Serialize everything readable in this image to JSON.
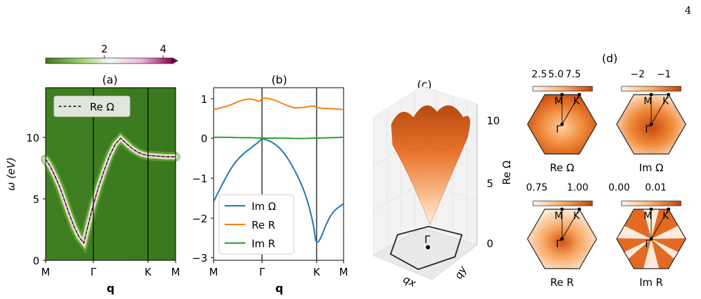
{
  "page_number": "4",
  "colors": {
    "green_dark": "#3b7a1f",
    "green_mid": "#6fae3a",
    "white": "#f7f7f7",
    "pink": "#c51b7d",
    "blue": "#1f77b4",
    "orange": "#ff7f0e",
    "green_line": "#2ca02c",
    "orange_map": "#e0621a"
  },
  "chart_data": [
    {
      "panel": "(a)",
      "type": "heatmap",
      "title": "(a)",
      "xlabel": "q",
      "ylabel": "ω (eV)",
      "x_ticks": [
        "M",
        "Γ",
        "K",
        "M"
      ],
      "y_ticks": [
        "0",
        "5",
        "10"
      ],
      "ylim": [
        0,
        14
      ],
      "colorbar_ticks": [
        "2",
        "4"
      ],
      "colorbar_range": [
        0,
        4.6
      ],
      "legend": [
        "Re Ω"
      ],
      "series": [
        {
          "name": "Re Ω",
          "x": [
            0,
            0.1,
            0.2,
            0.3,
            0.4,
            0.5,
            0.6,
            0.7,
            0.8,
            0.9,
            1.0,
            1.1,
            1.2,
            1.3,
            1.4,
            1.5,
            1.6,
            1.7,
            1.8,
            1.9,
            2.0,
            2.1,
            2.2,
            2.3
          ],
          "y": [
            8.2,
            7.6,
            6.8,
            5.9,
            4.8,
            3.7,
            2.7,
            1.9,
            1.4,
            3.0,
            4.5,
            6.0,
            7.3,
            8.5,
            9.4,
            9.9,
            9.5,
            9.1,
            8.8,
            8.6,
            8.5,
            8.45,
            8.4,
            8.4
          ]
        }
      ]
    },
    {
      "panel": "(b)",
      "type": "line",
      "title": "(b)",
      "xlabel": "q",
      "x_ticks": [
        "M",
        "Γ",
        "K",
        "M"
      ],
      "y_ticks": [
        "−3",
        "−2",
        "−1",
        "0",
        "1"
      ],
      "ylim": [
        -3,
        1.25
      ],
      "legend_position": "bottom-left",
      "series": [
        {
          "name": "Im Ω",
          "color": "#1f77b4",
          "y": [
            -1.6,
            -0.85,
            -0.45,
            -0.22,
            -0.08,
            0.0,
            -0.1,
            -0.35,
            -0.8,
            -1.4,
            -2.2,
            -2.8,
            -1.9,
            -1.65
          ]
        },
        {
          "name": "Re R",
          "color": "#ff7f0e",
          "y": [
            0.72,
            0.8,
            0.95,
            1.0,
            0.9,
            1.02,
            0.98,
            0.85,
            0.75,
            0.78,
            0.82,
            0.76,
            0.74,
            0.72
          ]
        },
        {
          "name": "Im R",
          "color": "#2ca02c",
          "y": [
            0.02,
            0.02,
            0.01,
            0.01,
            0.0,
            0.0,
            0.0,
            0.0,
            -0.01,
            -0.01,
            0.0,
            0.0,
            0.01,
            0.02
          ]
        }
      ],
      "x": [
        0,
        0.3,
        0.55,
        0.8,
        0.95,
        1.0,
        1.2,
        1.4,
        1.6,
        1.8,
        1.95,
        2.0,
        2.15,
        2.3
      ]
    },
    {
      "panel": "(c)",
      "type": "surface",
      "title": "(c)",
      "xlabel": "qx",
      "ylabel": "qy",
      "zlabel": "Re Ω",
      "z_ticks": [
        "0",
        "5",
        "10"
      ],
      "point_label": "Γ"
    },
    {
      "panel": "(d)",
      "type": "heatmap",
      "title": "(d)",
      "maps": [
        {
          "label": "Re Ω",
          "colorbar_ticks": [
            "2.5",
            "5.0",
            "7.5"
          ]
        },
        {
          "label": "Im Ω",
          "colorbar_ticks": [
            "−2",
            "−1"
          ]
        },
        {
          "label": "Re R",
          "colorbar_ticks": [
            "0.75",
            "1.00"
          ]
        },
        {
          "label": "Im R",
          "colorbar_ticks": [
            "0.00",
            "0.01"
          ]
        }
      ],
      "point_labels": [
        "M",
        "K",
        "Γ"
      ]
    }
  ]
}
